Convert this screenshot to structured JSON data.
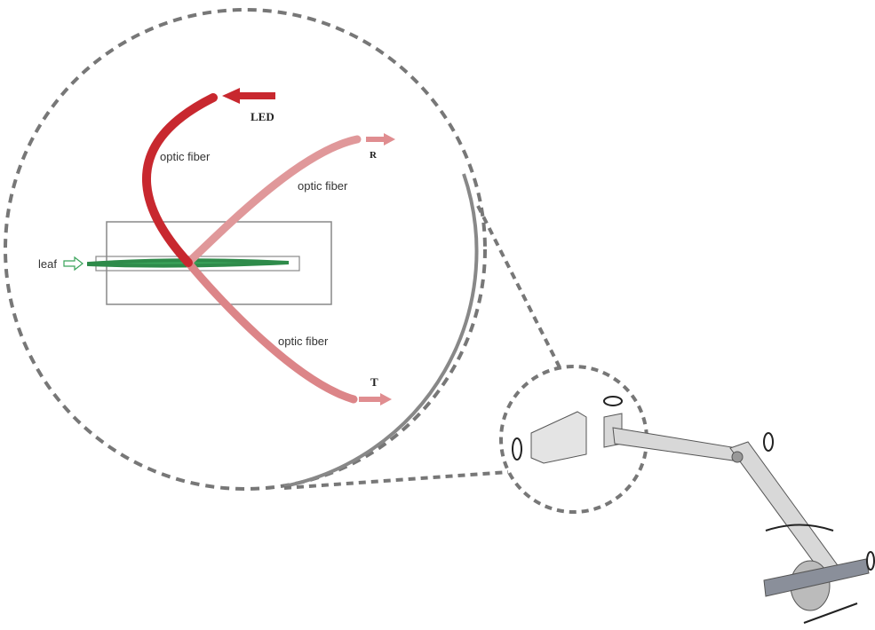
{
  "labels": {
    "led": "LED",
    "r": "R",
    "t": "T",
    "leaf": "leaf",
    "fiber_top": "optic fiber",
    "fiber_right": "optic fiber",
    "fiber_bottom": "optic fiber"
  }
}
